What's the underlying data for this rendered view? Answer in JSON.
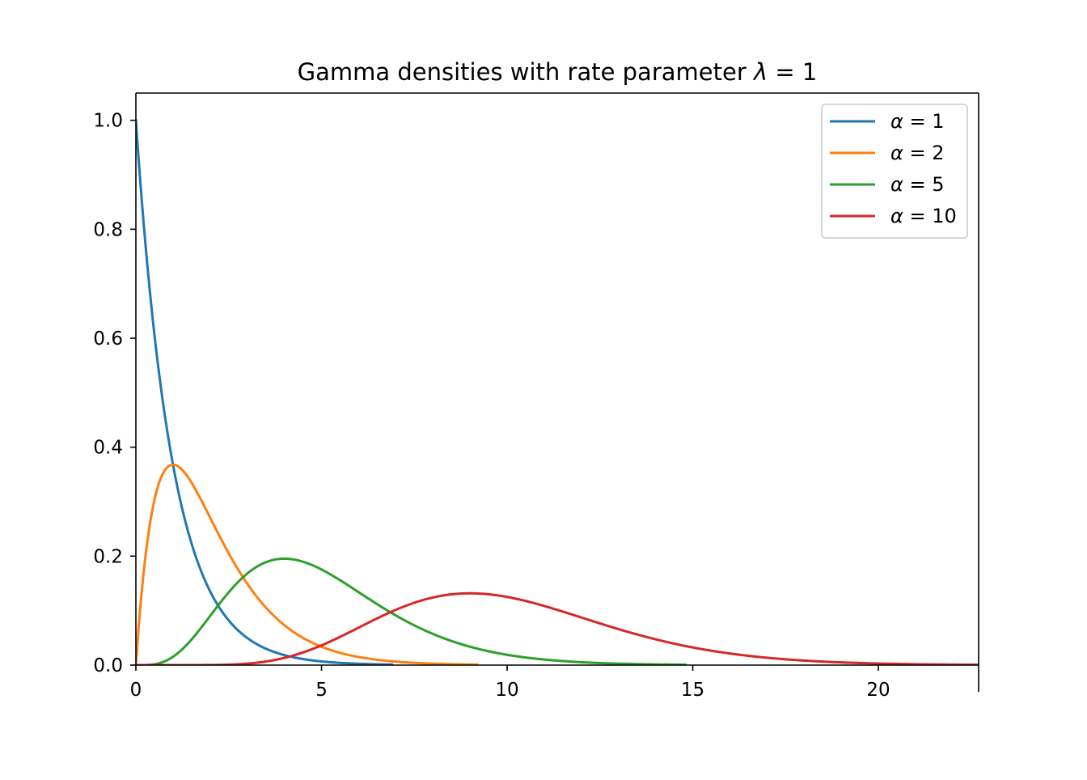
{
  "chart_data": {
    "type": "line",
    "title": "Gamma densities with rate parameter λ = 1",
    "title_parts": {
      "prefix": "Gamma densities with rate parameter ",
      "symbol": "λ",
      "suffix": " = 1"
    },
    "xlabel": "",
    "ylabel": "",
    "xlim": [
      0,
      22.7
    ],
    "ylim": [
      0,
      1.05
    ],
    "x_ticks": [
      0,
      5,
      10,
      15,
      20
    ],
    "y_ticks": [
      0.0,
      0.2,
      0.4,
      0.6,
      0.8,
      1.0
    ],
    "x_tick_labels": [
      "0",
      "5",
      "10",
      "15",
      "20"
    ],
    "y_tick_labels": [
      "0.0",
      "0.2",
      "0.4",
      "0.6",
      "0.8",
      "1.0"
    ],
    "grid": false,
    "legend_position": "top-right",
    "rate": 1,
    "series": [
      {
        "name": "α = 1",
        "label_symbol": "α",
        "label_value": "= 1",
        "alpha": 1,
        "x_range": [
          0,
          6.9
        ],
        "color": "#1f77b4"
      },
      {
        "name": "α = 2",
        "label_symbol": "α",
        "label_value": "= 2",
        "alpha": 2,
        "x_range": [
          0,
          9.2
        ],
        "color": "#ff7f0e"
      },
      {
        "name": "α = 5",
        "label_symbol": "α",
        "label_value": "= 5",
        "alpha": 5,
        "x_range": [
          0,
          14.8
        ],
        "color": "#2ca02c"
      },
      {
        "name": "α = 10",
        "label_symbol": "α",
        "label_value": "= 10",
        "alpha": 10,
        "x_range": [
          0,
          22.7
        ],
        "color": "#d62728"
      }
    ]
  }
}
